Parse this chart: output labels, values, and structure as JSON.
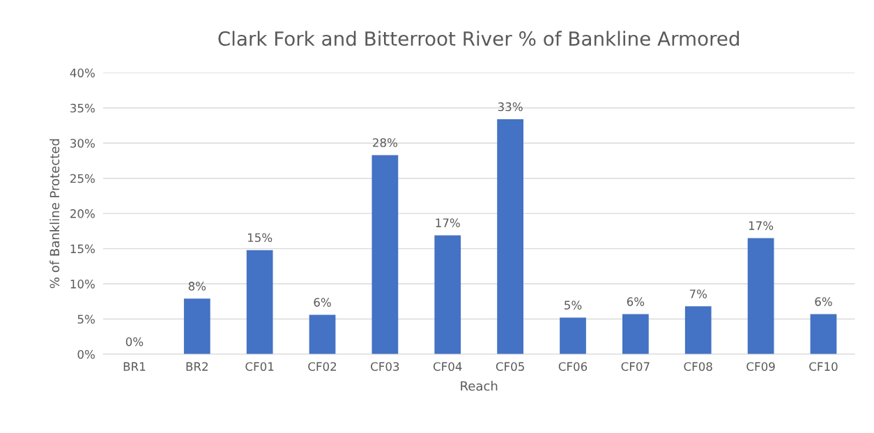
{
  "chart_data": {
    "type": "bar",
    "title": "Clark Fork and Bitterroot River % of Bankline Armored",
    "xlabel": "Reach",
    "ylabel": "% of Bankline Protected",
    "categories": [
      "BR1",
      "BR2",
      "CF01",
      "CF02",
      "CF03",
      "CF04",
      "CF05",
      "CF06",
      "CF07",
      "CF08",
      "CF09",
      "CF10"
    ],
    "values": [
      0,
      7.9,
      14.8,
      5.6,
      28.3,
      16.9,
      33.4,
      5.2,
      5.7,
      6.8,
      16.5,
      5.7
    ],
    "value_labels": [
      "0%",
      "8%",
      "15%",
      "6%",
      "28%",
      "17%",
      "33%",
      "5%",
      "6%",
      "7%",
      "17%",
      "6%"
    ],
    "color": "#4472c4",
    "ylim": [
      0,
      40
    ],
    "yticks": [
      {
        "value": 0,
        "label": "0%"
      },
      {
        "value": 5,
        "label": "5%"
      },
      {
        "value": 10,
        "label": "10%"
      },
      {
        "value": 15,
        "label": "15%"
      },
      {
        "value": 20,
        "label": "20%"
      },
      {
        "value": 25,
        "label": "25%"
      },
      {
        "value": 30,
        "label": "30%"
      },
      {
        "value": 35,
        "label": "35%"
      },
      {
        "value": 40,
        "label": "40%"
      }
    ],
    "grid": "y",
    "legend": false
  }
}
